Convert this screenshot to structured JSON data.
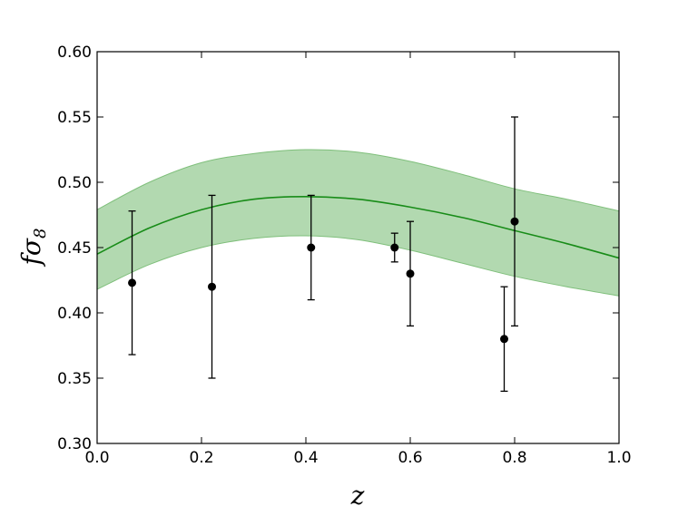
{
  "chart_data": {
    "type": "scatter",
    "title": "",
    "xlabel": "z",
    "ylabel_main": "fσ",
    "ylabel_sub": "8",
    "xlim": [
      0.0,
      1.0
    ],
    "ylim": [
      0.3,
      0.6
    ],
    "x_ticks": [
      "0.0",
      "0.2",
      "0.4",
      "0.6",
      "0.8",
      "1.0"
    ],
    "y_ticks": [
      "0.30",
      "0.35",
      "0.40",
      "0.45",
      "0.50",
      "0.55",
      "0.60"
    ],
    "grid": false,
    "points": [
      {
        "x": 0.067,
        "y": 0.423,
        "err_low": 0.055,
        "err_high": 0.055
      },
      {
        "x": 0.22,
        "y": 0.42,
        "err_low": 0.07,
        "err_high": 0.07
      },
      {
        "x": 0.41,
        "y": 0.45,
        "err_low": 0.04,
        "err_high": 0.04
      },
      {
        "x": 0.57,
        "y": 0.45,
        "err_low": 0.011,
        "err_high": 0.011
      },
      {
        "x": 0.6,
        "y": 0.43,
        "err_low": 0.04,
        "err_high": 0.04
      },
      {
        "x": 0.78,
        "y": 0.38,
        "err_low": 0.04,
        "err_high": 0.04
      },
      {
        "x": 0.8,
        "y": 0.47,
        "err_low": 0.08,
        "err_high": 0.08
      }
    ],
    "model_curve": {
      "x": [
        0.0,
        0.1,
        0.2,
        0.3,
        0.4,
        0.5,
        0.6,
        0.7,
        0.8,
        0.9,
        1.0
      ],
      "y": [
        0.445,
        0.465,
        0.479,
        0.487,
        0.489,
        0.487,
        0.481,
        0.473,
        0.463,
        0.453,
        0.442
      ]
    },
    "band": {
      "x": [
        0.0,
        0.1,
        0.2,
        0.3,
        0.4,
        0.5,
        0.6,
        0.7,
        0.8,
        0.9,
        1.0
      ],
      "lower": [
        0.418,
        0.437,
        0.45,
        0.457,
        0.459,
        0.456,
        0.448,
        0.438,
        0.428,
        0.42,
        0.413
      ],
      "upper": [
        0.479,
        0.5,
        0.515,
        0.522,
        0.525,
        0.523,
        0.516,
        0.506,
        0.495,
        0.487,
        0.478
      ]
    },
    "colors": {
      "curve": "#188c18",
      "band": "#b2d9b0",
      "band_edge": "#7fbf7b",
      "points": "#000000"
    }
  }
}
